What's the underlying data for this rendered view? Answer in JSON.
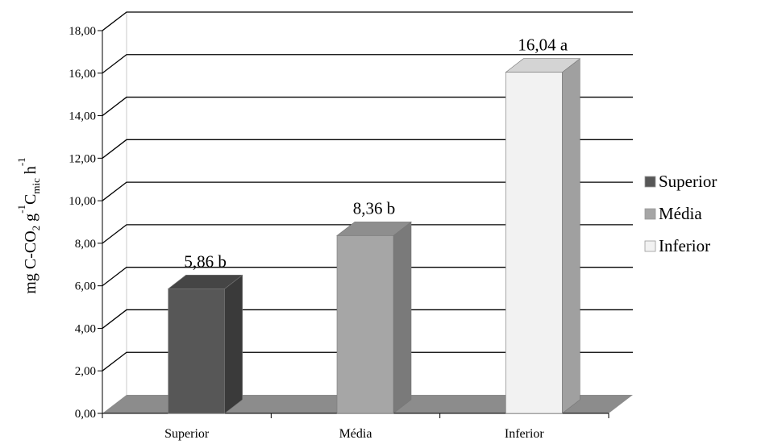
{
  "chart_data": {
    "type": "bar",
    "categories": [
      "Superior",
      "Média",
      "Inferior"
    ],
    "values": [
      5.86,
      8.36,
      16.04
    ],
    "data_labels": [
      "5,86 b",
      "8,36 b",
      "16,04 a"
    ],
    "ylabel": "mg C-CO₂ g⁻¹C_mic h⁻¹",
    "ylabel_parts": [
      "mg C-CO",
      "2",
      " g",
      "-1",
      "C",
      "mic",
      " h",
      "-1"
    ],
    "ylim": [
      0,
      18
    ],
    "yticks": [
      "0,00",
      "2,00",
      "4,00",
      "6,00",
      "8,00",
      "10,00",
      "12,00",
      "14,00",
      "16,00",
      "18,00"
    ],
    "grid": true,
    "three_d": true,
    "legend": {
      "position": "right",
      "entries": [
        "Superior",
        "Média",
        "Inferior"
      ]
    },
    "colors": {
      "Superior": {
        "front": "#575757",
        "side": "#3a3a3a",
        "top": "#454545"
      },
      "Média": {
        "front": "#a6a6a6",
        "side": "#7a7a7a",
        "top": "#8e8e8e"
      },
      "Inferior": {
        "front": "#f2f2f2",
        "side": "#a0a0a0",
        "top": "#d4d4d4"
      },
      "floor": "#8c8c8c",
      "grid": "#000000"
    }
  }
}
